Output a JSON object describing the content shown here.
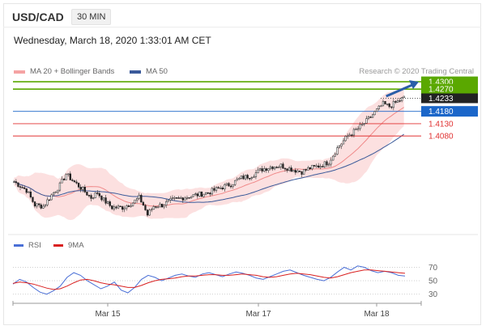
{
  "header": {
    "symbol": "USD/CAD",
    "interval": "30 MIN"
  },
  "timestamp": "Wednesday, March 18, 2020 1:33:01 AM CET",
  "credit": "Research © 2020 Trading Central",
  "colors": {
    "bollinger": "#f5a3a3",
    "ma50": "#3a5a9a",
    "resistance": "#5aa800",
    "pivot": "#1b66c9",
    "support": "#e03030",
    "rsi": "#4a6fd6",
    "rsi_ma": "#d92020"
  },
  "legend_main": [
    {
      "label": "MA 20 + Bollinger Bands",
      "color": "#f5a3a3"
    },
    {
      "label": "MA 50",
      "color": "#3a5a9a"
    }
  ],
  "legend_rsi": [
    {
      "label": "RSI",
      "color": "#4a6fd6"
    },
    {
      "label": "9MA",
      "color": "#d92020"
    }
  ],
  "chart_data": [
    {
      "type": "candlestick",
      "x_ticks": [
        "Mar 15",
        "Mar 17",
        "Mar 18"
      ],
      "ylim": [
        1.368,
        1.432
      ],
      "last_price": "1.4233",
      "levels": [
        {
          "label": "1.4300",
          "value": 1.43,
          "kind": "resistance"
        },
        {
          "label": "1.4270",
          "value": 1.427,
          "kind": "resistance"
        },
        {
          "label": "1.4180",
          "value": 1.418,
          "kind": "pivot"
        },
        {
          "label": "1.4130",
          "value": 1.413,
          "kind": "support"
        },
        {
          "label": "1.4080",
          "value": 1.408,
          "kind": "support"
        }
      ],
      "series": [
        {
          "name": "MA 20 + Bollinger Bands"
        },
        {
          "name": "MA 50"
        }
      ],
      "path_points": [
        [
          0,
          1.3895
        ],
        [
          6,
          1.386
        ],
        [
          10,
          1.38
        ],
        [
          14,
          1.3795
        ],
        [
          18,
          1.384
        ],
        [
          22,
          1.388
        ],
        [
          25,
          1.3925
        ],
        [
          28,
          1.39
        ],
        [
          32,
          1.387
        ],
        [
          37,
          1.383
        ],
        [
          40,
          1.385
        ],
        [
          43,
          1.382
        ],
        [
          47,
          1.379
        ],
        [
          52,
          1.379
        ],
        [
          57,
          1.381
        ],
        [
          60,
          1.383
        ],
        [
          62,
          1.38
        ],
        [
          64,
          1.376
        ],
        [
          67,
          1.3795
        ],
        [
          71,
          1.38
        ],
        [
          76,
          1.382
        ],
        [
          81,
          1.383
        ],
        [
          87,
          1.384
        ],
        [
          93,
          1.385
        ],
        [
          99,
          1.387
        ],
        [
          104,
          1.3885
        ],
        [
          109,
          1.391
        ],
        [
          114,
          1.392
        ],
        [
          119,
          1.3945
        ],
        [
          123,
          1.3955
        ],
        [
          128,
          1.396
        ],
        [
          133,
          1.3945
        ],
        [
          138,
          1.3935
        ],
        [
          142,
          1.395
        ],
        [
          147,
          1.396
        ],
        [
          151,
          1.3975
        ],
        [
          155,
          1.403
        ],
        [
          160,
          1.408
        ],
        [
          165,
          1.411
        ],
        [
          169,
          1.414
        ],
        [
          173,
          1.4175
        ],
        [
          177,
          1.421
        ],
        [
          180,
          1.42
        ],
        [
          183,
          1.4215
        ],
        [
          187,
          1.4235
        ]
      ],
      "projection_target": 1.43
    },
    {
      "type": "line",
      "series": [
        {
          "name": "RSI"
        },
        {
          "name": "9MA"
        }
      ],
      "y_ticks": [
        "70",
        "50",
        "30"
      ],
      "ylim": [
        20,
        85
      ],
      "rsi": [
        45,
        52,
        48,
        40,
        33,
        30,
        35,
        42,
        55,
        62,
        58,
        50,
        44,
        38,
        42,
        48,
        36,
        32,
        40,
        52,
        58,
        55,
        50,
        54,
        58,
        60,
        57,
        55,
        60,
        62,
        59,
        56,
        60,
        63,
        61,
        58,
        54,
        52,
        56,
        60,
        64,
        66,
        62,
        58,
        55,
        52,
        50,
        55,
        63,
        70,
        66,
        72,
        70,
        65,
        62,
        64,
        62,
        58,
        57
      ],
      "rsi_ma": [
        46,
        48,
        47,
        45,
        42,
        39,
        37,
        38,
        42,
        47,
        51,
        52,
        50,
        47,
        45,
        44,
        42,
        40,
        40,
        43,
        47,
        50,
        52,
        53,
        54,
        56,
        57,
        57,
        58,
        59,
        59,
        58,
        58,
        59,
        60,
        59,
        58,
        56,
        55,
        56,
        58,
        60,
        61,
        60,
        59,
        57,
        55,
        54,
        56,
        59,
        62,
        64,
        66,
        66,
        65,
        64,
        63,
        62,
        61
      ]
    }
  ]
}
